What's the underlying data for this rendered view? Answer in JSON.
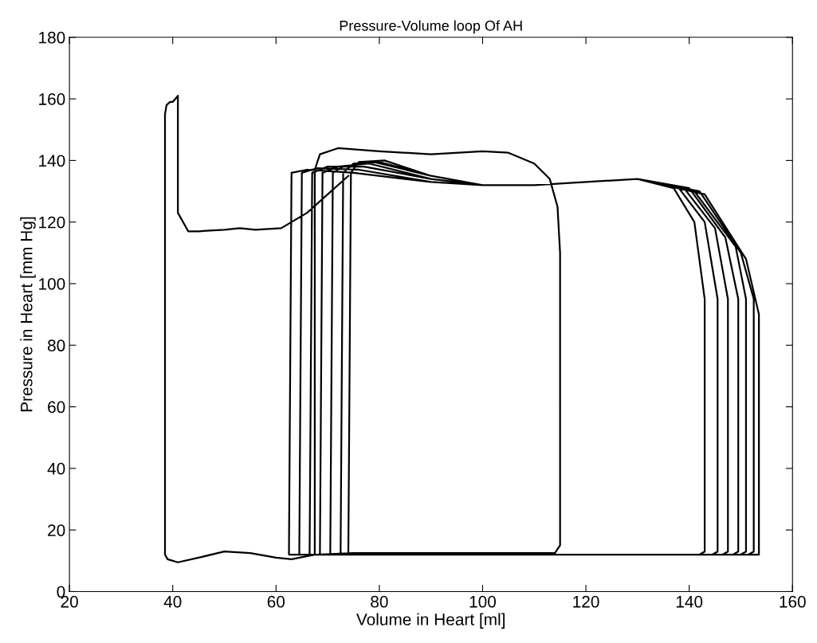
{
  "chart_data": {
    "type": "line",
    "title": "Pressure-Volume loop Of AH",
    "xlabel": "Volume in Heart [ml]",
    "ylabel": "Pressure in Heart [mm Hg]",
    "xlim": [
      20,
      160
    ],
    "xticks": [
      20,
      40,
      60,
      80,
      100,
      120,
      140,
      160
    ],
    "ylim": [
      0,
      180
    ],
    "yticks": [
      0,
      20,
      40,
      60,
      80,
      100,
      120,
      140,
      160,
      180
    ],
    "grid": false,
    "legend": false,
    "marker": "none",
    "line_style": "solid",
    "series": [
      {
        "color": "#000000",
        "x": [
          74,
          70,
          66,
          61,
          56,
          53,
          50,
          45,
          43,
          41,
          41,
          40,
          39.5,
          38.8,
          38.5,
          38.5,
          39,
          41,
          45,
          50,
          55,
          60,
          63,
          67.5,
          67.5,
          68.5,
          72,
          80,
          90,
          100,
          105,
          110,
          113,
          114.5,
          115,
          115,
          114,
          110,
          90,
          75,
          68,
          62.5,
          63,
          66,
          75,
          90,
          100,
          110,
          120,
          130,
          137,
          141,
          143,
          143,
          142,
          100,
          64.5,
          65,
          68,
          76,
          90,
          100,
          110,
          120,
          130,
          138,
          143,
          145.5,
          145.5,
          144.5,
          100,
          66.5,
          67,
          70,
          77,
          90,
          100,
          110,
          120,
          130,
          139,
          145,
          147.5,
          147.5,
          146.5,
          100,
          68.5,
          69,
          72,
          78,
          90,
          100,
          110,
          120,
          130,
          140,
          147,
          149.5,
          149.5,
          148.5,
          100,
          70.5,
          71,
          73,
          79,
          90,
          100,
          110,
          120,
          130,
          141,
          149,
          151,
          151,
          150,
          100,
          72.5,
          73,
          75,
          80,
          90,
          100,
          110,
          120,
          130,
          142,
          150,
          152.5,
          152.5,
          151.5,
          100,
          74,
          74.5,
          76,
          81,
          90,
          100,
          110,
          120,
          130,
          143,
          151,
          153.5,
          153.5,
          152.5,
          100,
          74
        ],
        "values": [
          135,
          129,
          123,
          118,
          117.5,
          118,
          117.5,
          117,
          117,
          123,
          161,
          159,
          159,
          158,
          155,
          12,
          10.5,
          9.5,
          11,
          13,
          12.5,
          11,
          10.5,
          12,
          137,
          142,
          144,
          143,
          142,
          143,
          142.5,
          139,
          134,
          125,
          110,
          15,
          12.5,
          12.5,
          12.5,
          12.5,
          12,
          12,
          136,
          137,
          136,
          133,
          132,
          132,
          133,
          134,
          131,
          120,
          95,
          13,
          12,
          12,
          12,
          136,
          137.5,
          137,
          133,
          132,
          132,
          133,
          134,
          131,
          120,
          95,
          13,
          12,
          12,
          12,
          136,
          138,
          138,
          134,
          132,
          132,
          133,
          134,
          131,
          118,
          95,
          13,
          12,
          12,
          12,
          136,
          138,
          139,
          134,
          132,
          132,
          133,
          134,
          131,
          115,
          95,
          13,
          12,
          12,
          12,
          136,
          138,
          139.5,
          135,
          132,
          132,
          133,
          134,
          130,
          112,
          95,
          13,
          12,
          12,
          12,
          136,
          139,
          139.5,
          135,
          132,
          132,
          133,
          134,
          130,
          110,
          95,
          13,
          12,
          12,
          12,
          136,
          139.5,
          140,
          135,
          132,
          132,
          133,
          134,
          129,
          108,
          90,
          12,
          12,
          12,
          12
        ]
      }
    ]
  }
}
